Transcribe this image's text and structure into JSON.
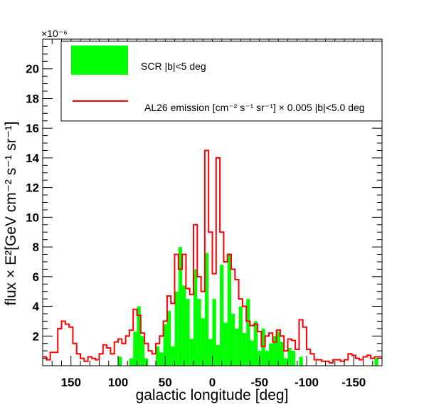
{
  "chart_data": {
    "type": "bar",
    "xlabel": "galactic longitude [deg]",
    "ylabel": "flux × E²[GeV cm⁻² s⁻¹ sr⁻¹]",
    "y_exponent_label": "×10⁻⁶",
    "xlim": [
      180,
      -180
    ],
    "ylim": [
      0,
      22
    ],
    "x_ticks": [
      150,
      100,
      50,
      0,
      -50,
      -100,
      -150
    ],
    "y_ticks": [
      2,
      4,
      6,
      8,
      10,
      12,
      14,
      16,
      18,
      20
    ],
    "legend_placement": "top-right",
    "bin_width_deg": 4,
    "series": [
      {
        "name": "SCR |b|<5 deg",
        "style": "filled-histogram",
        "color": "#00ff00",
        "x": [
          178,
          174,
          170,
          166,
          162,
          158,
          154,
          150,
          146,
          142,
          138,
          134,
          130,
          126,
          122,
          118,
          114,
          110,
          106,
          102,
          98,
          94,
          90,
          86,
          82,
          78,
          74,
          70,
          66,
          62,
          58,
          54,
          50,
          46,
          42,
          38,
          34,
          30,
          26,
          22,
          18,
          14,
          10,
          6,
          2,
          -2,
          -6,
          -10,
          -14,
          -18,
          -22,
          -26,
          -30,
          -34,
          -38,
          -42,
          -46,
          -50,
          -54,
          -58,
          -62,
          -66,
          -70,
          -74,
          -78,
          -82,
          -86,
          -90,
          -94,
          -98,
          -102,
          -106,
          -110,
          -114,
          -118,
          -122,
          -126,
          -130,
          -134,
          -138,
          -142,
          -146,
          -150,
          -154,
          -158,
          -162,
          -166,
          -170,
          -174,
          -178
        ],
        "values": [
          0,
          0,
          0,
          0,
          0,
          0,
          0,
          0,
          0,
          0,
          0,
          0,
          0,
          0,
          0,
          0,
          0,
          0,
          0,
          0,
          0.6,
          0,
          0,
          0.5,
          2.3,
          4.0,
          2.0,
          0.5,
          0,
          0,
          1.3,
          0.9,
          2.8,
          3.7,
          1.3,
          5.0,
          8.0,
          5.4,
          4.5,
          1.8,
          6.5,
          4.5,
          3.2,
          7.6,
          1.8,
          4.5,
          1.4,
          6.8,
          2.9,
          7.5,
          3.5,
          2.5,
          4.0,
          2.2,
          4.5,
          1.7,
          3.0,
          1.0,
          2.5,
          1.0,
          1.5,
          2.0,
          2.3,
          1.6,
          0.5,
          1.2,
          1.0,
          0,
          0.6,
          0,
          0,
          0,
          0,
          0,
          0,
          0,
          0,
          0,
          0,
          0,
          0,
          0,
          0,
          0,
          0,
          0,
          0,
          0,
          0.5,
          0
        ]
      },
      {
        "name": "AL26 emission [cm⁻² s⁻¹ sr⁻¹] × 0.005 |b|<5.0 deg",
        "style": "step-line",
        "color": "#ff0000",
        "x": [
          178,
          174,
          170,
          166,
          162,
          158,
          154,
          150,
          146,
          142,
          138,
          134,
          130,
          126,
          122,
          118,
          114,
          110,
          106,
          102,
          98,
          94,
          90,
          86,
          82,
          78,
          74,
          70,
          66,
          62,
          58,
          54,
          50,
          46,
          42,
          38,
          34,
          30,
          26,
          22,
          18,
          14,
          10,
          6,
          2,
          -2,
          -6,
          -10,
          -14,
          -18,
          -22,
          -26,
          -30,
          -34,
          -38,
          -42,
          -46,
          -50,
          -54,
          -58,
          -62,
          -66,
          -70,
          -74,
          -78,
          -82,
          -86,
          -90,
          -94,
          -98,
          -102,
          -106,
          -110,
          -114,
          -118,
          -122,
          -126,
          -130,
          -134,
          -138,
          -142,
          -146,
          -150,
          -154,
          -158,
          -162,
          -166,
          -170,
          -174,
          -178
        ],
        "values": [
          0.6,
          0.4,
          0.9,
          0.9,
          2.5,
          3.0,
          2.8,
          2.6,
          1.5,
          0.8,
          0.5,
          0.3,
          0.6,
          0.5,
          0.4,
          0.8,
          1.4,
          1.2,
          0.8,
          1.6,
          1.8,
          1.5,
          2.0,
          2.4,
          3.8,
          3.4,
          2.2,
          1.5,
          1.0,
          0.8,
          1.5,
          2.0,
          3.0,
          4.7,
          4.2,
          7.5,
          6.5,
          7.5,
          5.2,
          4.8,
          9.5,
          6.0,
          5.0,
          14.5,
          9.0,
          6.2,
          14.0,
          9.0,
          7.0,
          7.5,
          6.5,
          5.8,
          4.5,
          4.0,
          3.0,
          2.7,
          2.8,
          2.3,
          1.3,
          2.0,
          2.2,
          1.6,
          2.4,
          2.0,
          1.0,
          1.8,
          1.7,
          1.1,
          3.1,
          2.6,
          1.1,
          0.8,
          0.4,
          0.4,
          0.3,
          0.3,
          0.2,
          0.4,
          0.4,
          0.3,
          0.4,
          0.8,
          0.7,
          0.5,
          0.4,
          0.6,
          0.7,
          0.5,
          0.6,
          0.6
        ]
      }
    ]
  }
}
